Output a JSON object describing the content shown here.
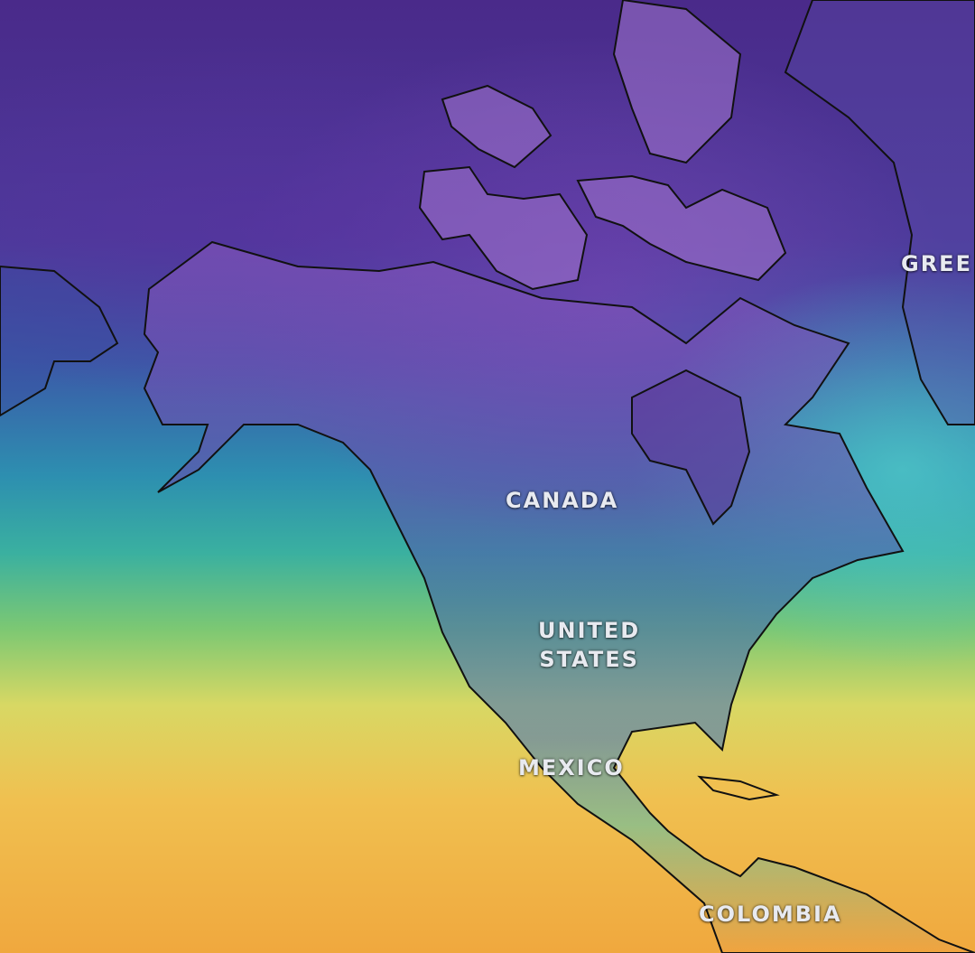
{
  "map": {
    "type": "temperature-map",
    "labels": {
      "greenland": "GREE",
      "canada": "CANADA",
      "united_states_1": "UNITED",
      "united_states_2": "STATES",
      "mexico": "MEXICO",
      "colombia": "COLOMBIA"
    },
    "colors": {
      "cold": "#4a2a8a",
      "cool": "#3b5aa8",
      "mild": "#3ab0a0",
      "warm": "#d8d864",
      "hot": "#f0a83e",
      "coastline": "#111111"
    }
  }
}
